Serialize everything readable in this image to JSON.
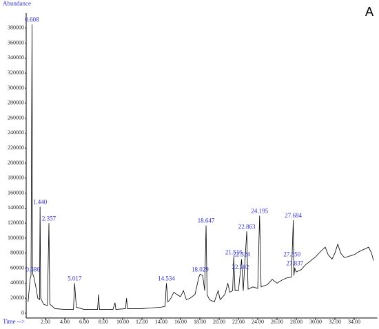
{
  "chart_data": {
    "type": "line",
    "panel_label": "A",
    "y_label": "Abundance",
    "x_label": "Time -->",
    "xlim": [
      0,
      36.4
    ],
    "ylim": [
      0,
      400000
    ],
    "xticks": [
      {
        "value": 2,
        "label": "2.00"
      },
      {
        "value": 4,
        "label": "4.00"
      },
      {
        "value": 6,
        "label": "6.00"
      },
      {
        "value": 8,
        "label": "8.00"
      },
      {
        "value": 10,
        "label": "10.00"
      },
      {
        "value": 12,
        "label": "12.00"
      },
      {
        "value": 14,
        "label": "14.00"
      },
      {
        "value": 16,
        "label": "16.00"
      },
      {
        "value": 18,
        "label": "18.00"
      },
      {
        "value": 20,
        "label": "20.00"
      },
      {
        "value": 22,
        "label": "22.00"
      },
      {
        "value": 24,
        "label": "24.00"
      },
      {
        "value": 26,
        "label": "26.00"
      },
      {
        "value": 28,
        "label": "28.00"
      },
      {
        "value": 30,
        "label": "30.00"
      },
      {
        "value": 32,
        "label": "32.00"
      },
      {
        "value": 34,
        "label": "34.00"
      }
    ],
    "yticks": [
      0,
      20000,
      40000,
      60000,
      80000,
      100000,
      120000,
      140000,
      160000,
      180000,
      200000,
      220000,
      240000,
      260000,
      280000,
      300000,
      320000,
      340000,
      360000,
      380000
    ],
    "x": [
      0.2,
      0.4,
      0.5,
      0.608,
      0.65,
      0.686,
      0.8,
      1.0,
      1.2,
      1.38,
      1.44,
      1.5,
      1.8,
      2.2,
      2.357,
      2.45,
      3.0,
      4.0,
      4.9,
      5.017,
      5.2,
      6.0,
      7.4,
      7.5,
      7.6,
      9.0,
      9.2,
      9.3,
      10.3,
      10.4,
      10.5,
      12.0,
      13.0,
      14.0,
      14.4,
      14.534,
      14.7,
      15.0,
      15.3,
      15.6,
      16.0,
      16.3,
      16.6,
      17.0,
      17.5,
      17.9,
      18.029,
      18.3,
      18.5,
      18.647,
      18.75,
      19.0,
      19.5,
      19.9,
      20.1,
      20.6,
      20.9,
      21.1,
      21.4,
      21.516,
      21.65,
      22.0,
      22.202,
      22.324,
      22.5,
      22.863,
      23.0,
      23.5,
      24.0,
      24.195,
      24.35,
      25.0,
      25.5,
      26.0,
      26.5,
      27.0,
      27.5,
      27.55,
      27.684,
      27.75,
      27.837,
      28.0,
      28.5,
      29.0,
      29.5,
      30.0,
      30.5,
      31.0,
      31.3,
      31.7,
      32.0,
      32.3,
      32.6,
      33.0,
      33.5,
      34.0,
      34.5,
      35.0,
      35.5,
      35.8,
      36.0
    ],
    "series": [
      {
        "color": "#000000",
        "values": [
          15000,
          45000,
          50000,
          385000,
          60000,
          52000,
          48000,
          35000,
          20000,
          18000,
          142000,
          20000,
          12000,
          10000,
          120000,
          12000,
          6000,
          5000,
          5000,
          40000,
          8000,
          5000,
          5000,
          25000,
          5000,
          5000,
          14000,
          5000,
          6000,
          20000,
          6000,
          6000,
          7000,
          8000,
          9000,
          40000,
          15000,
          20000,
          28000,
          25000,
          22000,
          30000,
          18000,
          20000,
          25000,
          48000,
          52000,
          50000,
          30000,
          117000,
          25000,
          18000,
          15000,
          30000,
          18000,
          25000,
          40000,
          28000,
          30000,
          75000,
          30000,
          30000,
          55000,
          72000,
          30000,
          109000,
          32000,
          35000,
          33000,
          130000,
          35000,
          38000,
          45000,
          40000,
          44000,
          47000,
          48000,
          72000,
          124000,
          50000,
          60000,
          55000,
          58000,
          65000,
          70000,
          75000,
          82000,
          88000,
          78000,
          72000,
          80000,
          92000,
          80000,
          74000,
          76000,
          78000,
          82000,
          85000,
          88000,
          80000,
          70000
        ]
      }
    ],
    "annotations": [
      {
        "text": "0.608",
        "x": 0.608,
        "y": 385000
      },
      {
        "text": "0.686",
        "x": 0.686,
        "y": 52000
      },
      {
        "text": "1.440",
        "x": 1.44,
        "y": 142000
      },
      {
        "text": "2.357",
        "x": 2.357,
        "y": 120000
      },
      {
        "text": "5.017",
        "x": 5.017,
        "y": 40000
      },
      {
        "text": "14.534",
        "x": 14.534,
        "y": 40000
      },
      {
        "text": "18.029",
        "x": 18.029,
        "y": 52000
      },
      {
        "text": "18.647",
        "x": 18.647,
        "y": 117000
      },
      {
        "text": "21.516",
        "x": 21.516,
        "y": 75000
      },
      {
        "text": "22.202",
        "x": 22.202,
        "y": 55000
      },
      {
        "text": "22.324",
        "x": 22.324,
        "y": 72000
      },
      {
        "text": "22.863",
        "x": 22.863,
        "y": 109000
      },
      {
        "text": "24.195",
        "x": 24.195,
        "y": 130000
      },
      {
        "text": "27.550",
        "x": 27.55,
        "y": 72000
      },
      {
        "text": "27.684",
        "x": 27.684,
        "y": 124000
      },
      {
        "text": "27.837",
        "x": 27.837,
        "y": 60000
      }
    ]
  }
}
